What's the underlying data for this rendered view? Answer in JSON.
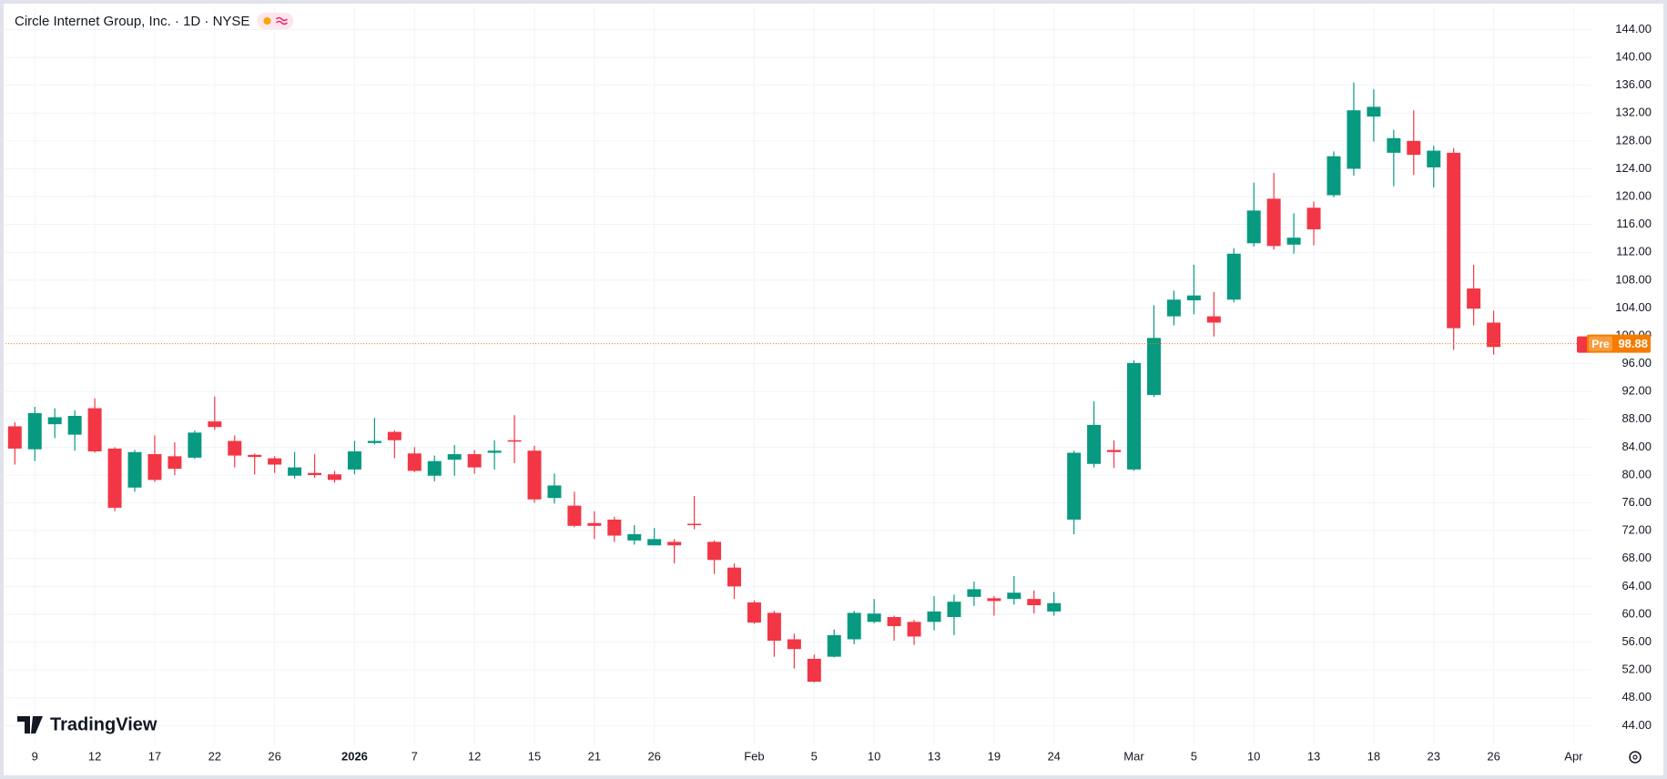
{
  "chart_data": {
    "type": "candlestick",
    "title": "Circle Internet Group, Inc. · 1D · NYSE",
    "categories": [
      null,
      "9",
      null,
      null,
      "12",
      null,
      null,
      "17",
      null,
      null,
      "22",
      null,
      null,
      "26",
      null,
      null,
      null,
      "2026",
      null,
      null,
      "7",
      null,
      null,
      "12",
      null,
      null,
      "15",
      null,
      null,
      "21",
      null,
      null,
      "26",
      null,
      null,
      null,
      null,
      "Feb",
      null,
      null,
      "5",
      null,
      null,
      "10",
      null,
      null,
      "13",
      null,
      null,
      "19",
      null,
      null,
      "24",
      null,
      null,
      null,
      "Mar",
      null,
      null,
      "5",
      null,
      null,
      "10",
      null,
      null,
      "13",
      null,
      null,
      "18",
      null,
      null,
      "23",
      null,
      null,
      "26",
      null,
      null,
      null,
      "Apr"
    ],
    "open": [
      87.0,
      83.7,
      87.3,
      85.8,
      89.6,
      83.8,
      78.2,
      83.0,
      82.7,
      82.5,
      87.7,
      84.9,
      82.9,
      82.4,
      79.9,
      80.3,
      80.1,
      80.8,
      84.6,
      86.2,
      83.1,
      79.9,
      82.2,
      83.0,
      83.2,
      85.0,
      83.5,
      76.7,
      75.6,
      73.1,
      73.6,
      70.6,
      69.9,
      70.4,
      73.0,
      70.4,
      66.7,
      61.7,
      60.2,
      56.4,
      53.6,
      53.9,
      56.4,
      58.9,
      59.6,
      58.9,
      58.9,
      59.6,
      62.5,
      62.3,
      62.2,
      62.2,
      60.4,
      73.6,
      81.6,
      83.6,
      80.8,
      91.5,
      102.8,
      105.1,
      102.8,
      105.2,
      113.3,
      119.7,
      113.1,
      118.4,
      120.2,
      124.0,
      131.5,
      126.3,
      128.0,
      124.2,
      126.3,
      106.8,
      101.9,
      null,
      null,
      null,
      null
    ],
    "high": [
      87.6,
      89.8,
      89.6,
      89.3,
      91.0,
      84.0,
      83.6,
      85.7,
      84.7,
      86.4,
      91.3,
      85.7,
      83.1,
      82.7,
      83.3,
      83.0,
      80.6,
      84.9,
      88.2,
      86.4,
      84.0,
      82.8,
      84.3,
      83.6,
      85.0,
      88.6,
      84.2,
      80.2,
      77.6,
      74.8,
      74.0,
      72.8,
      72.4,
      70.8,
      77.0,
      70.6,
      67.3,
      62.0,
      60.5,
      57.2,
      54.2,
      57.8,
      60.5,
      62.2,
      59.8,
      59.2,
      62.6,
      62.8,
      64.7,
      62.6,
      65.5,
      63.4,
      63.2,
      83.5,
      90.6,
      85.0,
      96.5,
      104.4,
      106.5,
      110.2,
      106.3,
      112.6,
      122.0,
      123.4,
      117.6,
      119.3,
      126.5,
      136.4,
      135.4,
      129.6,
      132.4,
      127.3,
      127.0,
      110.2,
      103.6,
      null,
      null,
      null,
      null
    ],
    "low": [
      81.5,
      82.0,
      85.3,
      83.5,
      83.2,
      74.8,
      77.6,
      79.0,
      80.0,
      82.3,
      86.5,
      81.1,
      80.1,
      80.3,
      79.5,
      79.6,
      78.9,
      80.1,
      84.4,
      82.4,
      80.4,
      79.1,
      79.9,
      80.2,
      80.8,
      81.7,
      76.0,
      75.9,
      72.5,
      70.8,
      70.4,
      70.0,
      69.9,
      67.3,
      72.2,
      65.8,
      62.2,
      58.6,
      53.9,
      52.2,
      50.2,
      53.8,
      55.7,
      58.7,
      56.2,
      55.6,
      57.7,
      57.0,
      61.2,
      59.8,
      61.4,
      60.1,
      59.8,
      71.5,
      81.1,
      81.0,
      80.6,
      91.2,
      101.5,
      103.1,
      99.9,
      104.8,
      112.8,
      112.4,
      111.8,
      113.0,
      119.9,
      123.0,
      127.9,
      121.5,
      123.1,
      121.3,
      98.0,
      101.5,
      97.3,
      null,
      null,
      null,
      null
    ],
    "close": [
      83.8,
      88.9,
      88.3,
      88.5,
      83.4,
      75.3,
      83.3,
      79.3,
      80.9,
      86.1,
      86.9,
      82.8,
      82.6,
      81.5,
      81.1,
      80.0,
      79.3,
      83.4,
      84.9,
      85.0,
      80.6,
      82.0,
      83.0,
      81.1,
      83.5,
      84.8,
      76.5,
      78.5,
      72.7,
      72.7,
      71.3,
      71.5,
      70.8,
      69.9,
      72.8,
      67.8,
      64.0,
      58.8,
      56.2,
      55.0,
      50.3,
      57.0,
      60.2,
      60.1,
      58.3,
      56.8,
      60.4,
      61.8,
      63.6,
      61.9,
      63.1,
      61.3,
      61.6,
      83.2,
      87.2,
      83.3,
      96.1,
      99.7,
      105.2,
      105.8,
      101.9,
      111.8,
      118.0,
      112.9,
      114.1,
      115.3,
      125.8,
      132.4,
      132.9,
      128.4,
      126.0,
      126.6,
      101.1,
      103.9,
      98.4,
      null,
      null,
      null,
      null
    ],
    "up_color": "#089981",
    "down_color": "#f23645",
    "ylim": [
      41.3,
      147.2
    ],
    "yticks": [
      {
        "value": 44,
        "label": "44.00"
      },
      {
        "value": 48,
        "label": "48.00"
      },
      {
        "value": 52,
        "label": "52.00"
      },
      {
        "value": 56,
        "label": "56.00"
      },
      {
        "value": 60,
        "label": "60.00"
      },
      {
        "value": 64,
        "label": "64.00"
      },
      {
        "value": 68,
        "label": "68.00"
      },
      {
        "value": 72,
        "label": "72.00"
      },
      {
        "value": 76,
        "label": "76.00"
      },
      {
        "value": 80,
        "label": "80.00"
      },
      {
        "value": 84,
        "label": "84.00"
      },
      {
        "value": 88,
        "label": "88.00"
      },
      {
        "value": 92,
        "label": "92.00"
      },
      {
        "value": 96,
        "label": "96.00"
      },
      {
        "value": 100,
        "label": "100.00"
      },
      {
        "value": 104,
        "label": "104.00"
      },
      {
        "value": 108,
        "label": "108.00"
      },
      {
        "value": 112,
        "label": "112.00"
      },
      {
        "value": 116,
        "label": "116.00"
      },
      {
        "value": 120,
        "label": "120.00"
      },
      {
        "value": 124,
        "label": "124.00"
      },
      {
        "value": 128,
        "label": "128.00"
      },
      {
        "value": 132,
        "label": "132.00"
      },
      {
        "value": 136,
        "label": "136.00"
      },
      {
        "value": 140,
        "label": "140.00"
      },
      {
        "value": 144,
        "label": "144.00"
      }
    ],
    "grid": true,
    "last_price": {
      "name": "Pre",
      "value": 98.88,
      "color": "#f57c00"
    }
  },
  "branding": "TradingView"
}
